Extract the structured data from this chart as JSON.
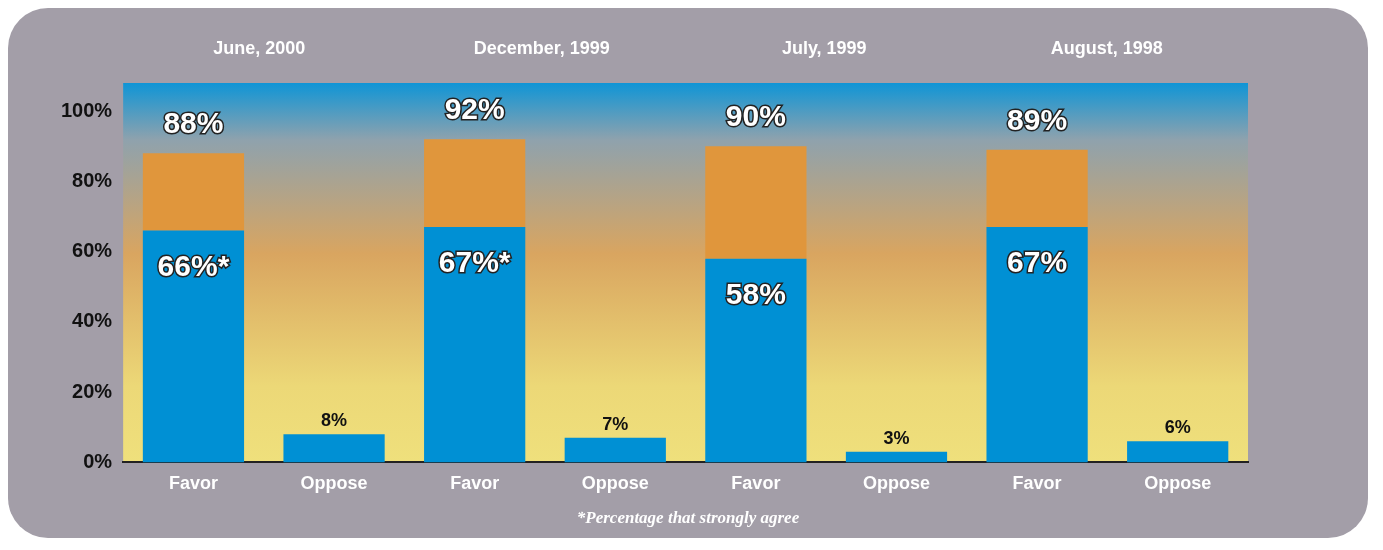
{
  "chart_data": {
    "type": "bar",
    "stacked": true,
    "categories": [
      "Favor",
      "Oppose",
      "Favor",
      "Oppose",
      "Favor",
      "Oppose",
      "Favor",
      "Oppose"
    ],
    "series": [
      {
        "color": "#0090d4",
        "values": [
          66,
          8,
          67,
          7,
          58,
          3,
          67,
          6
        ],
        "value_labels": [
          "66%*",
          "8%",
          "67%*",
          "7%",
          "58%",
          "3%",
          "67%",
          "6%"
        ]
      },
      {
        "color": "#e0963c",
        "values": [
          22,
          null,
          25,
          null,
          32,
          null,
          22,
          null
        ]
      }
    ],
    "totals": [
      "88%",
      null,
      "92%",
      null,
      "90%",
      null,
      "89%",
      null
    ],
    "ylim": [
      0,
      108
    ],
    "yticks": [
      {
        "value": 0,
        "label": "0%"
      },
      {
        "value": 20,
        "label": "20%"
      },
      {
        "value": 40,
        "label": "40%"
      },
      {
        "value": 60,
        "label": "60%"
      },
      {
        "value": 80,
        "label": "80%"
      },
      {
        "value": 100,
        "label": "100%"
      }
    ],
    "grid": false,
    "legend": false,
    "annotations": [
      "June, 2000",
      "December, 1999",
      "July, 1999",
      "August, 1998",
      "*Percentage that strongly agree"
    ]
  }
}
